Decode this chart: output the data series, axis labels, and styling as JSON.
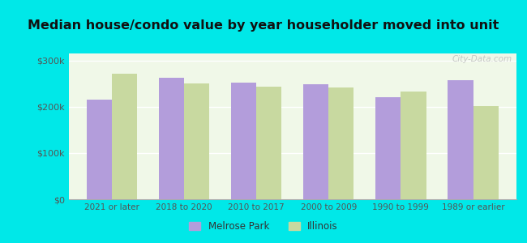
{
  "categories": [
    "2021 or later",
    "2018 to 2020",
    "2010 to 2017",
    "2000 to 2009",
    "1990 to 1999",
    "1989 or earlier"
  ],
  "melrose_park": [
    215000,
    262000,
    252000,
    248000,
    220000,
    257000
  ],
  "illinois": [
    272000,
    250000,
    243000,
    241000,
    233000,
    201000
  ],
  "melrose_park_color": "#b39ddb",
  "illinois_color": "#c8d9a0",
  "background_color": "#00e8e8",
  "plot_bg_top": "#f0f8e8",
  "plot_bg_bottom": "#e8f5e0",
  "title": "Median house/condo value by year householder moved into unit",
  "title_fontsize": 11.5,
  "ylabel_ticks": [
    0,
    100000,
    200000,
    300000
  ],
  "ylim": [
    0,
    315000
  ],
  "legend_melrose": "Melrose Park",
  "legend_illinois": "Illinois",
  "bar_width": 0.35,
  "watermark": "City-Data.com"
}
